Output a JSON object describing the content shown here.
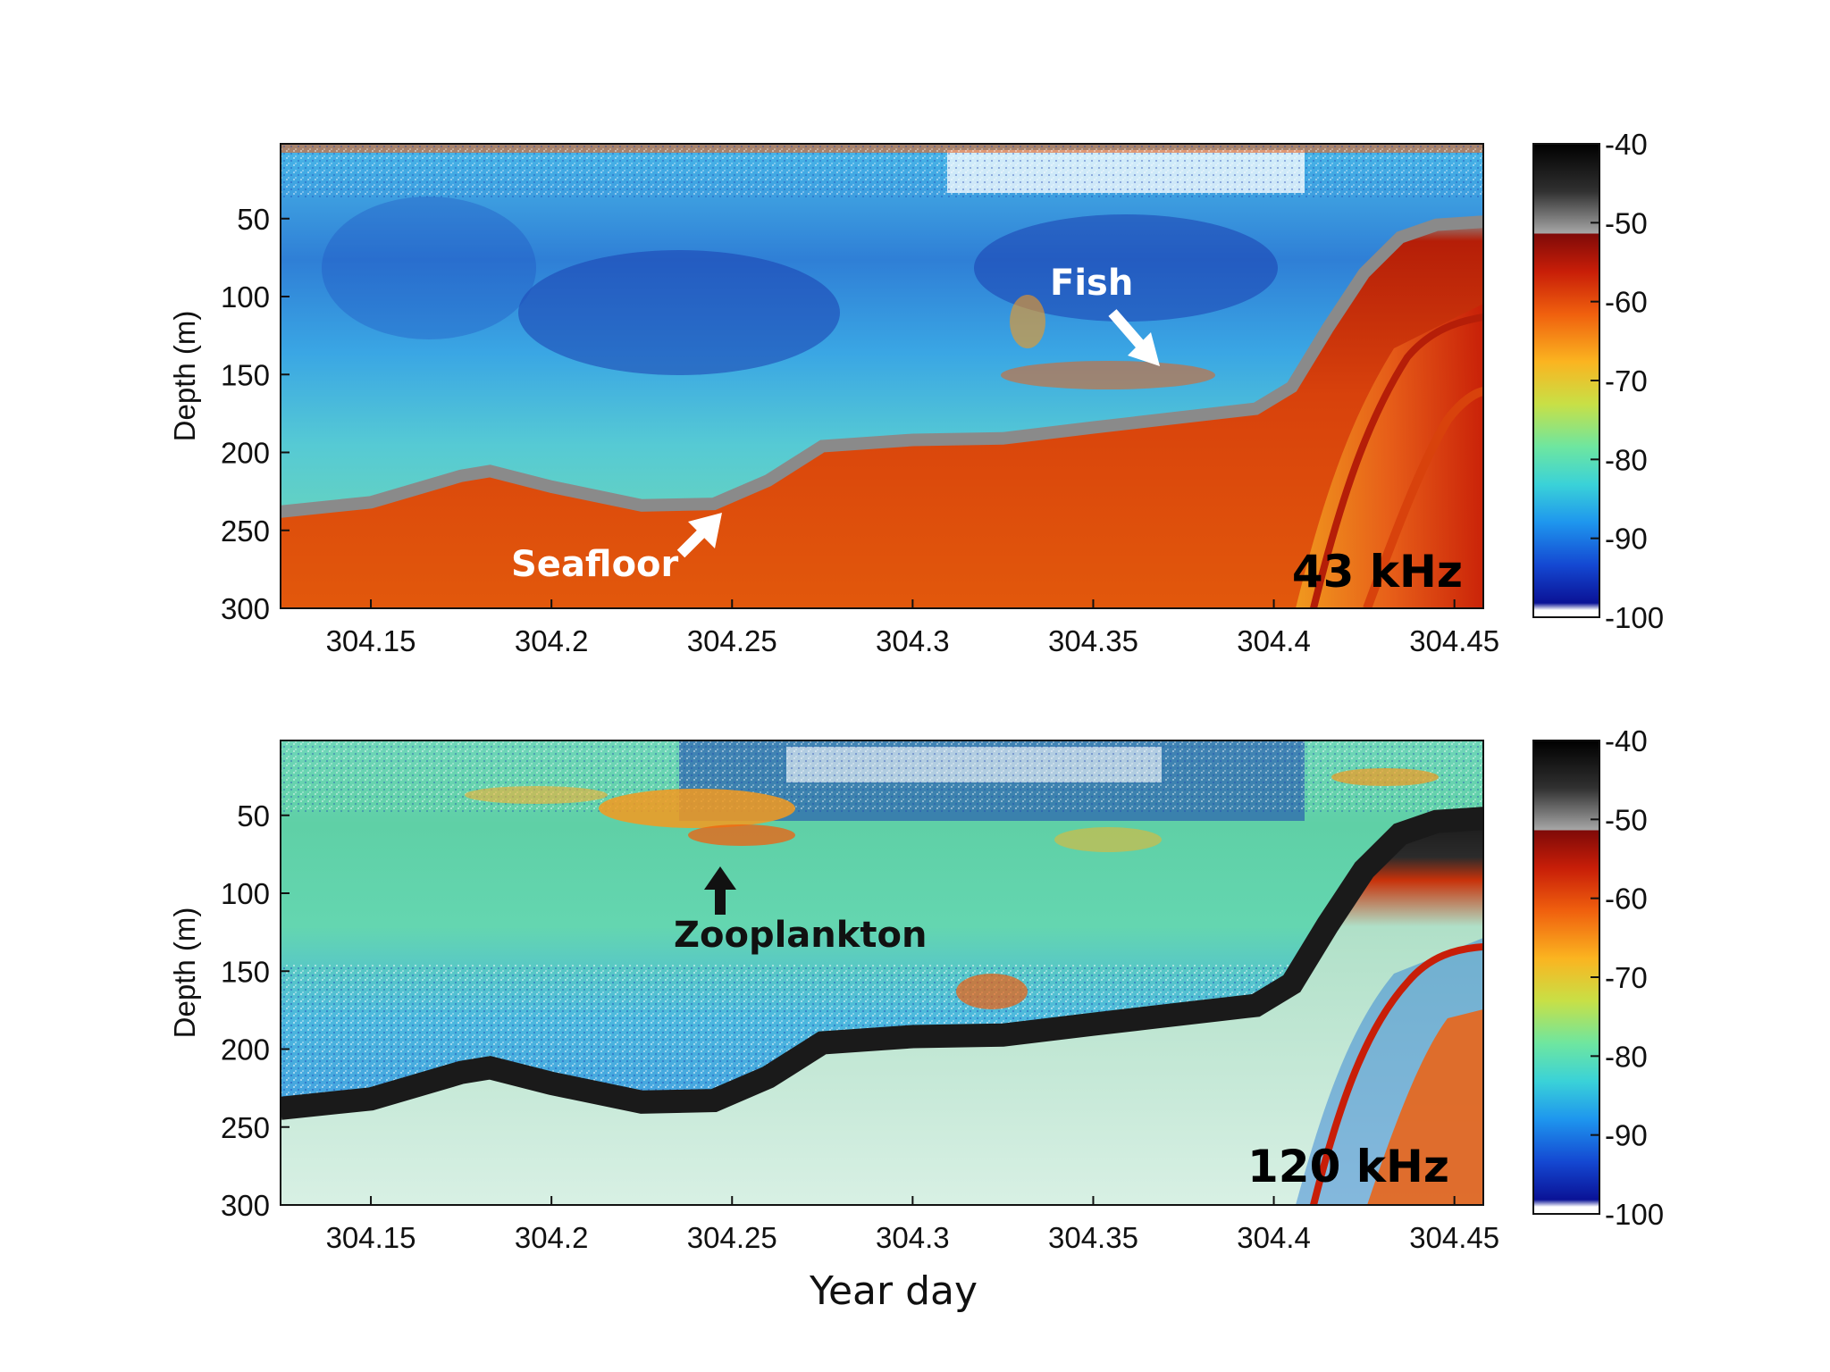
{
  "chart_data": [
    {
      "type": "heatmap",
      "panel": "top",
      "frequency_label": "43 kHz",
      "xlabel": "",
      "ylabel": "Depth (m)",
      "xlim": [
        304.125,
        304.458
      ],
      "ylim": [
        300,
        2
      ],
      "x_ticks": [
        "304.15",
        "304.2",
        "304.25",
        "304.3",
        "304.35",
        "304.4",
        "304.45"
      ],
      "y_ticks": [
        "50",
        "100",
        "150",
        "200",
        "250",
        "300"
      ],
      "colorbar": {
        "range": [
          -100,
          -40
        ],
        "ticks": [
          "-40",
          "-50",
          "-60",
          "-70",
          "-80",
          "-90",
          "-100"
        ]
      },
      "seafloor_depth": [
        [
          304.125,
          238
        ],
        [
          304.15,
          232
        ],
        [
          304.175,
          215
        ],
        [
          304.183,
          212
        ],
        [
          304.2,
          222
        ],
        [
          304.225,
          234
        ],
        [
          304.245,
          233
        ],
        [
          304.26,
          218
        ],
        [
          304.275,
          196
        ],
        [
          304.3,
          192
        ],
        [
          304.325,
          191
        ],
        [
          304.35,
          184
        ],
        [
          304.365,
          180
        ],
        [
          304.38,
          176
        ],
        [
          304.395,
          172
        ],
        [
          304.405,
          158
        ],
        [
          304.415,
          120
        ],
        [
          304.425,
          85
        ],
        [
          304.435,
          62
        ],
        [
          304.445,
          54
        ],
        [
          304.458,
          52
        ]
      ],
      "annotations": [
        {
          "text": "Fish",
          "x": 304.365,
          "y": 140
        },
        {
          "text": "Seafloor",
          "x": 304.235,
          "y": 252
        }
      ]
    },
    {
      "type": "heatmap",
      "panel": "bottom",
      "frequency_label": "120 kHz",
      "xlabel": "Year day",
      "ylabel": "Depth (m)",
      "xlim": [
        304.125,
        304.458
      ],
      "ylim": [
        300,
        2
      ],
      "x_ticks": [
        "304.15",
        "304.2",
        "304.25",
        "304.3",
        "304.35",
        "304.4",
        "304.45"
      ],
      "y_ticks": [
        "50",
        "100",
        "150",
        "200",
        "250",
        "300"
      ],
      "colorbar": {
        "range": [
          -100,
          -40
        ],
        "ticks": [
          "-40",
          "-50",
          "-60",
          "-70",
          "-80",
          "-90",
          "-100"
        ]
      },
      "seafloor_depth": [
        [
          304.125,
          238
        ],
        [
          304.15,
          232
        ],
        [
          304.175,
          215
        ],
        [
          304.183,
          212
        ],
        [
          304.2,
          222
        ],
        [
          304.225,
          234
        ],
        [
          304.245,
          233
        ],
        [
          304.26,
          218
        ],
        [
          304.275,
          196
        ],
        [
          304.3,
          192
        ],
        [
          304.325,
          191
        ],
        [
          304.35,
          184
        ],
        [
          304.365,
          180
        ],
        [
          304.38,
          176
        ],
        [
          304.395,
          172
        ],
        [
          304.405,
          158
        ],
        [
          304.415,
          120
        ],
        [
          304.425,
          85
        ],
        [
          304.435,
          62
        ],
        [
          304.445,
          54
        ],
        [
          304.458,
          52
        ]
      ],
      "annotations": [
        {
          "text": "Zooplankton",
          "x": 304.245,
          "y": 100
        }
      ]
    }
  ],
  "colors": {
    "seafloor_top": "#b51e08",
    "seafloor_bottom": "#1a1a1a",
    "water_blue": "#2f7fd6",
    "deep_blue": "#1b3fb0",
    "green": "#5fd0a6",
    "orange": "#f59a1e"
  }
}
